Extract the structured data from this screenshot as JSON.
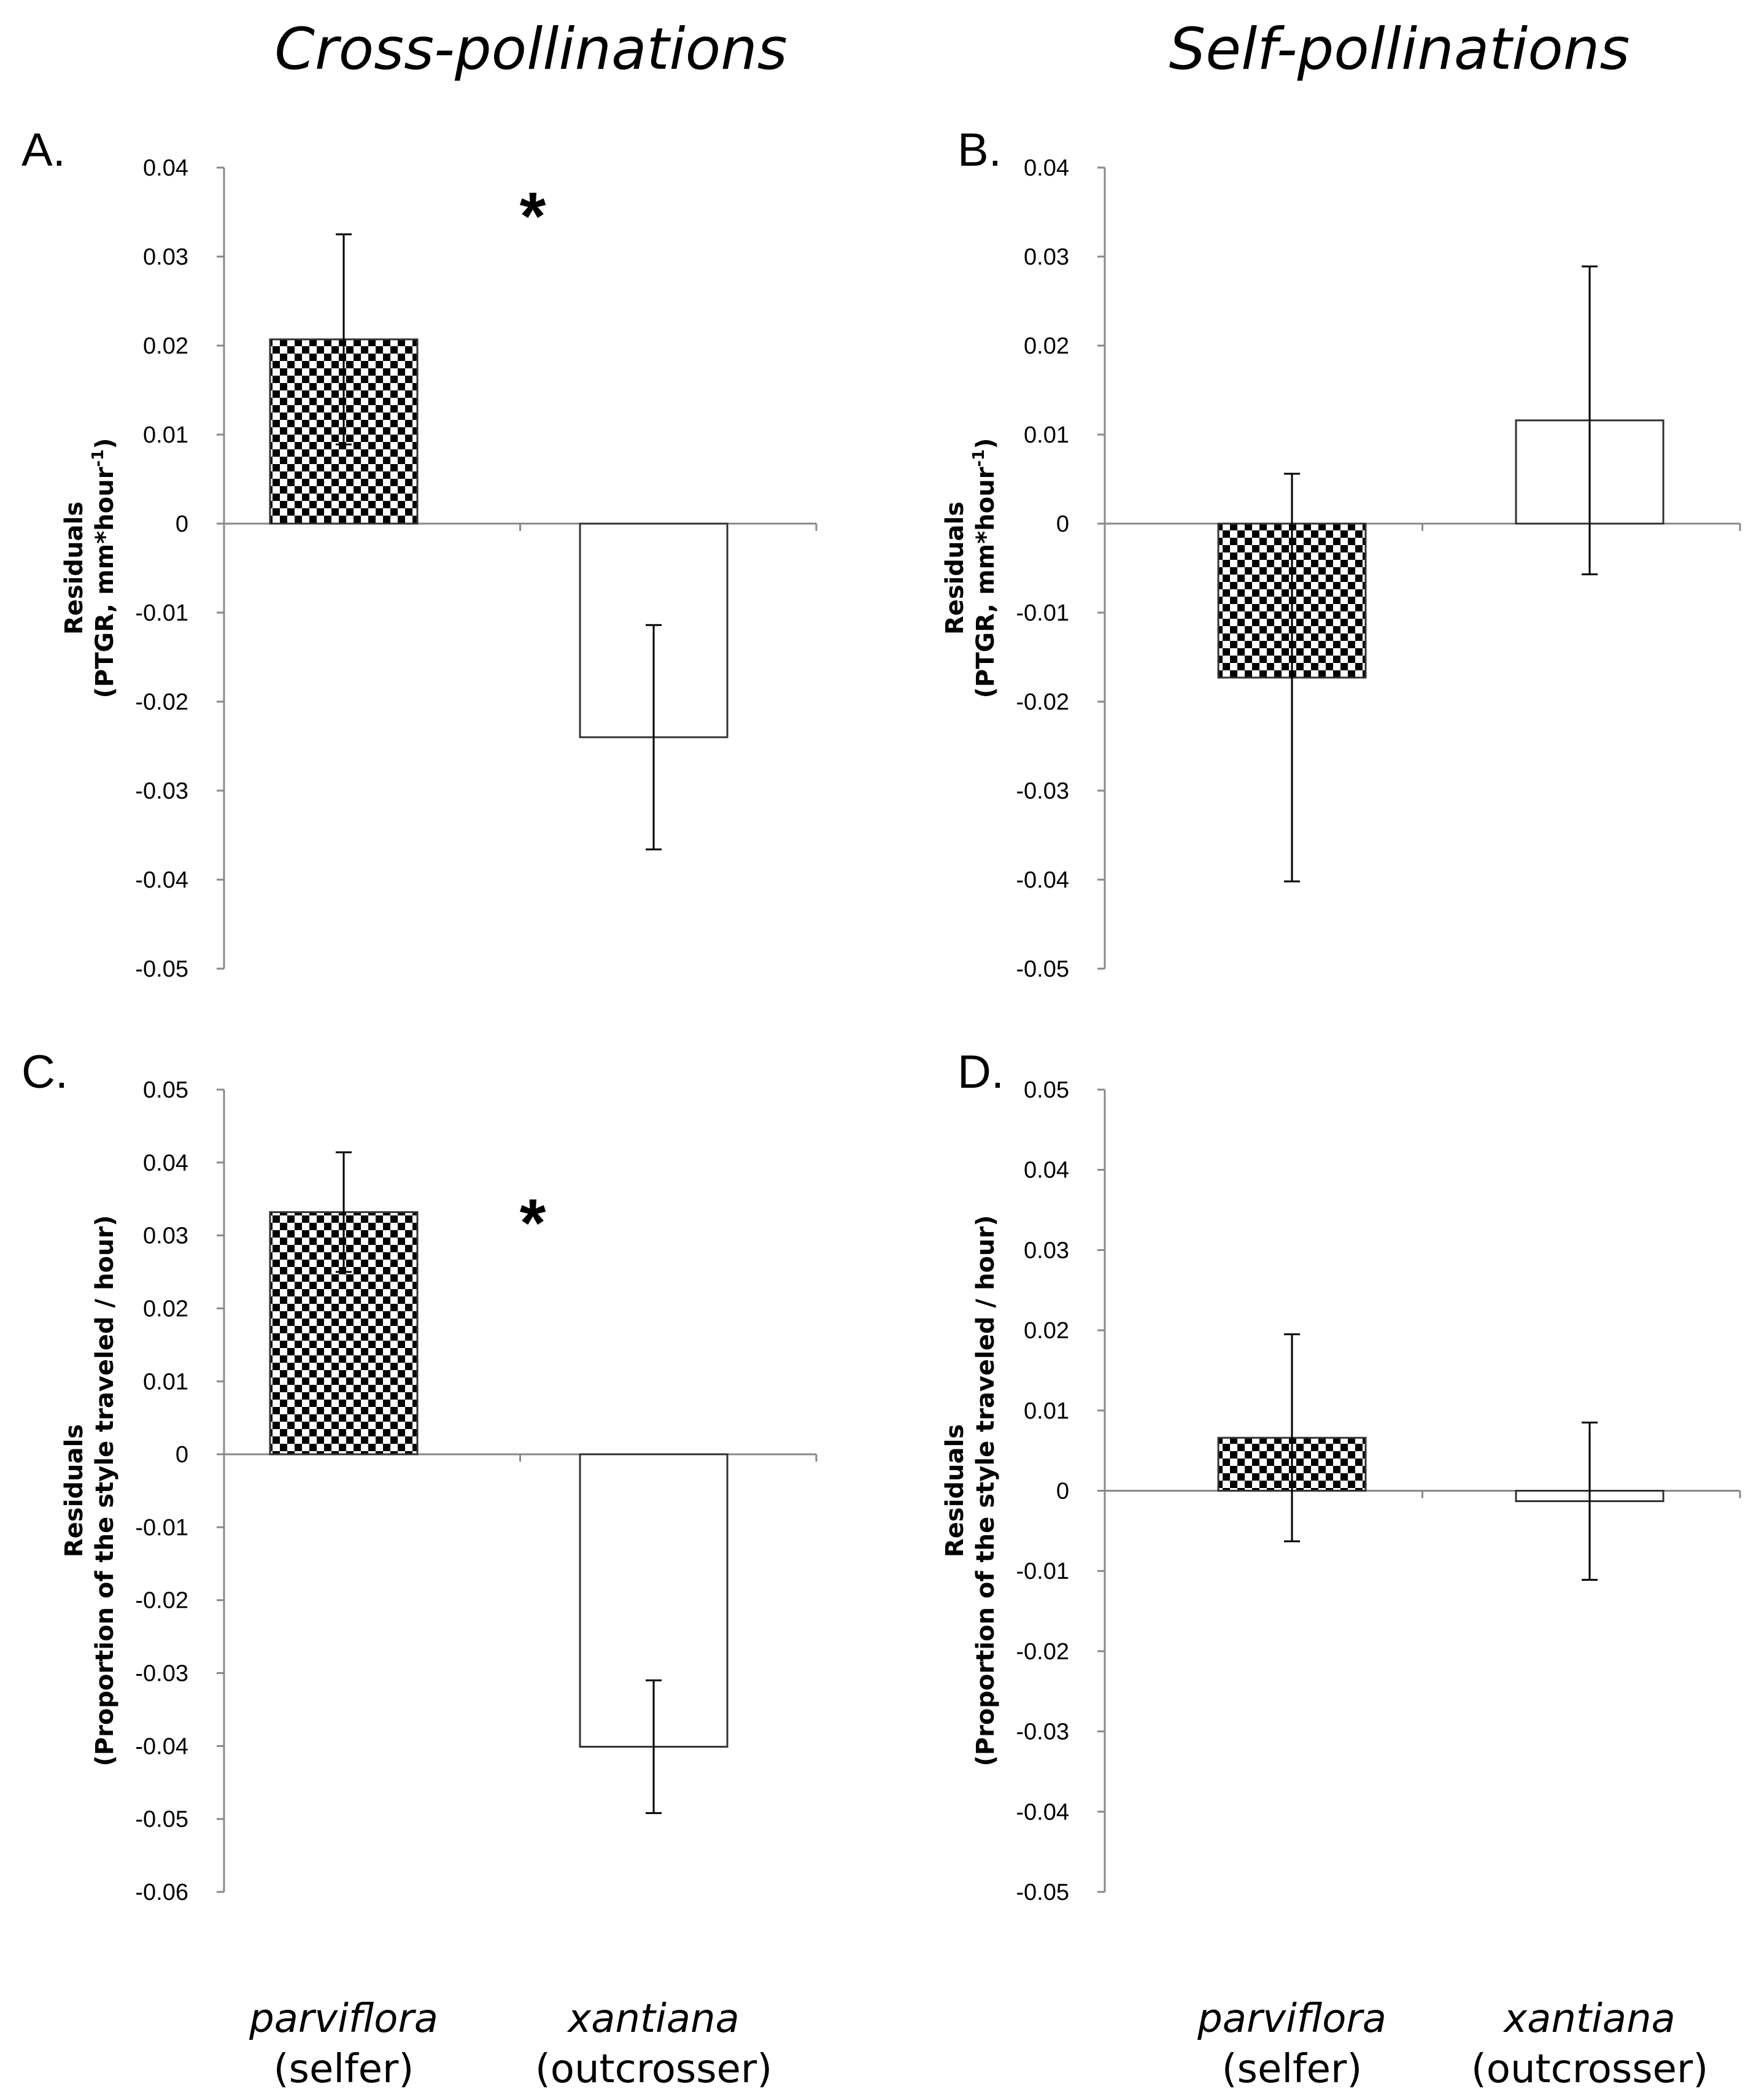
{
  "column_titles": [
    "Cross-pollinations",
    "Self-pollinations"
  ],
  "categories": [
    {
      "name": "parviflora",
      "sub": "(selfer)"
    },
    {
      "name": "xantiana",
      "sub": "(outcrosser)"
    }
  ],
  "colors": {
    "checker_dark": "#000000",
    "checker_light": "#ffffff",
    "open_bar": "#ffffff",
    "axis": "#888888"
  },
  "chart_data": [
    {
      "type": "bar",
      "panel": "A.",
      "title": "Cross-pollinations",
      "ylabel_line1": "Residuals",
      "ylabel_line2": "(PTGR, mm*hour",
      "ylabel_sup": "-1",
      "ylabel_end": ")",
      "ylim": [
        -0.05,
        0.04
      ],
      "yticks": [
        "0.04",
        "0.03",
        "0.02",
        "0.01",
        "0",
        "-0.01",
        "-0.02",
        "-0.03",
        "-0.04",
        "-0.05"
      ],
      "categories": [
        "parviflora (selfer)",
        "xantiana (outcrosser)"
      ],
      "values": [
        0.0207,
        -0.024
      ],
      "errors": [
        0.0118,
        0.0126
      ],
      "significance": "*"
    },
    {
      "type": "bar",
      "panel": "B.",
      "title": "Self-pollinations",
      "ylabel_line1": "Residuals",
      "ylabel_line2": "(PTGR, mm*hour",
      "ylabel_sup": "-1",
      "ylabel_end": ")",
      "ylim": [
        -0.05,
        0.04
      ],
      "yticks": [
        "0.04",
        "0.03",
        "0.02",
        "0.01",
        "0",
        "-0.01",
        "-0.02",
        "-0.03",
        "-0.04",
        "-0.05"
      ],
      "categories": [
        "parviflora (selfer)",
        "xantiana (outcrosser)"
      ],
      "values": [
        -0.0173,
        0.0116
      ],
      "errors": [
        0.0229,
        0.0173
      ],
      "significance": ""
    },
    {
      "type": "bar",
      "panel": "C.",
      "title": "Cross-pollinations",
      "ylabel_line1": "Residuals",
      "ylabel_line2": "(Proportion of the style traveled / hour)",
      "ylabel_sup": "",
      "ylabel_end": "",
      "ylim": [
        -0.06,
        0.05
      ],
      "yticks": [
        "0.05",
        "0.04",
        "0.03",
        "0.02",
        "0.01",
        "0",
        "-0.01",
        "-0.02",
        "-0.03",
        "-0.04",
        "-0.05",
        "-0.06"
      ],
      "categories": [
        "parviflora (selfer)",
        "xantiana (outcrosser)"
      ],
      "values": [
        0.0332,
        -0.0401
      ],
      "errors": [
        0.0082,
        0.0091
      ],
      "significance": "*"
    },
    {
      "type": "bar",
      "panel": "D.",
      "title": "Self-pollinations",
      "ylabel_line1": "Residuals",
      "ylabel_line2": "(Proportion of the style traveled / hour)",
      "ylabel_sup": "",
      "ylabel_end": "",
      "ylim": [
        -0.05,
        0.05
      ],
      "yticks": [
        "0.05",
        "0.04",
        "0.03",
        "0.02",
        "0.01",
        "0",
        "-0.01",
        "-0.02",
        "-0.03",
        "-0.04",
        "-0.05"
      ],
      "categories": [
        "parviflora (selfer)",
        "xantiana (outcrosser)"
      ],
      "values": [
        0.0066,
        -0.0013
      ],
      "errors": [
        0.0129,
        0.0098
      ],
      "significance": ""
    }
  ]
}
